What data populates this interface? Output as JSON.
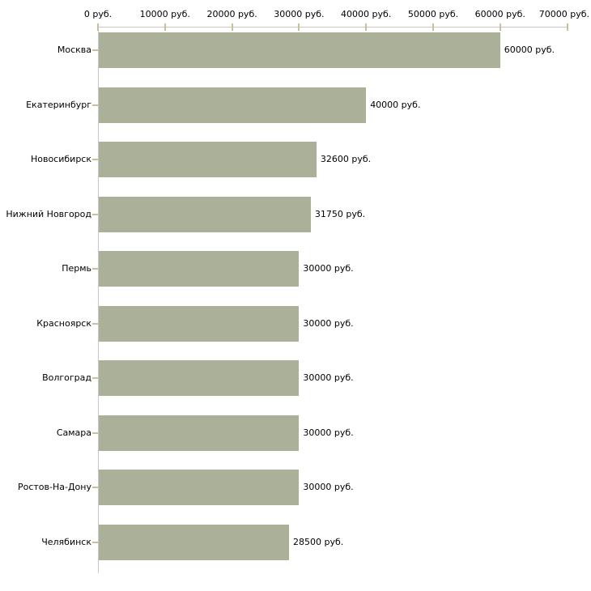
{
  "chart_data": {
    "type": "bar",
    "orientation": "horizontal",
    "title": "",
    "categories": [
      "Москва",
      "Екатеринбург",
      "Новосибирск",
      "Нижний Новгород",
      "Пермь",
      "Красноярск",
      "Волгоград",
      "Самара",
      "Ростов-На-Дону",
      "Челябинск"
    ],
    "values": [
      60000,
      40000,
      32600,
      31750,
      30000,
      30000,
      30000,
      30000,
      30000,
      28500
    ],
    "value_labels": [
      "60000 руб.",
      "40000 руб.",
      "32600 руб.",
      "31750 руб.",
      "30000 руб.",
      "30000 руб.",
      "30000 руб.",
      "30000 руб.",
      "30000 руб.",
      "28500 руб."
    ],
    "x_axis": {
      "position": "top",
      "range": [
        0,
        70000
      ],
      "tick_values": [
        0,
        10000,
        20000,
        30000,
        40000,
        50000,
        60000,
        70000
      ],
      "tick_labels": [
        "0 руб.",
        "10000 руб.",
        "20000 руб.",
        "30000 руб.",
        "40000 руб.",
        "50000 руб.",
        "60000 руб.",
        "70000 руб."
      ]
    },
    "unit_suffix": " руб.",
    "grid": false,
    "legend": false,
    "colors": {
      "bar": "#abb199",
      "axis_line": "#c9c9c9",
      "tick_mark": "#c9c09a",
      "text": "#000000",
      "background": "#ffffff"
    }
  }
}
